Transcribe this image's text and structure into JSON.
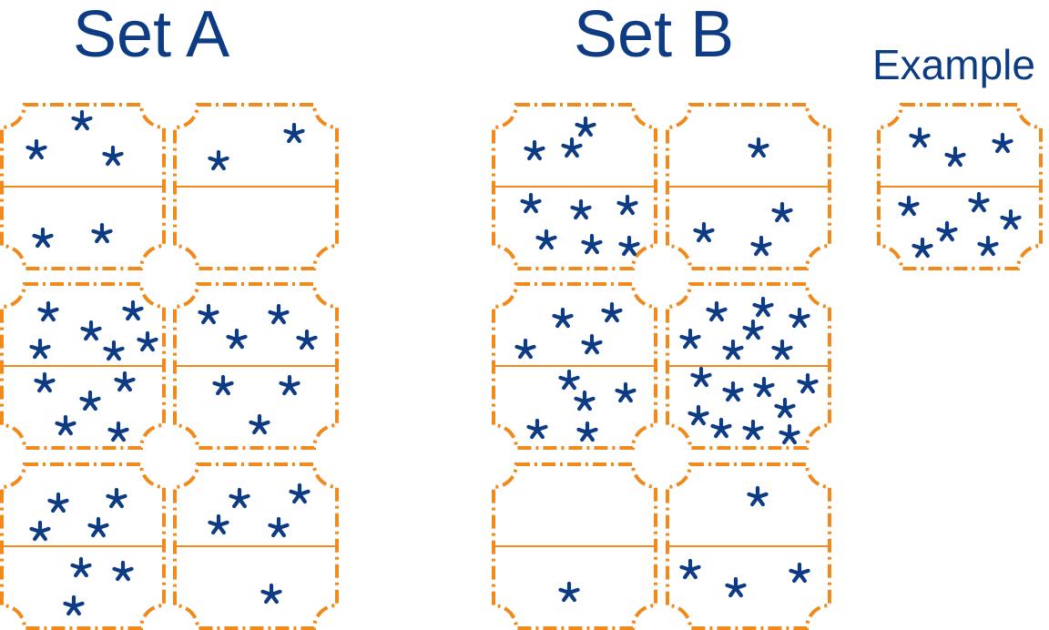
{
  "titles": {
    "set_a": "Set A",
    "set_b": "Set B",
    "example": "Example"
  },
  "colors": {
    "frame": "#f08a1c",
    "star": "#0d3b84",
    "text": "#0d3b84"
  },
  "icons": {
    "star": "asterisk-icon"
  },
  "panels": [
    {
      "group": "set-a",
      "row": 1,
      "col": 1,
      "top_stars": 3,
      "bottom_stars": 2
    },
    {
      "group": "set-a",
      "row": 1,
      "col": 2,
      "top_stars": 2,
      "bottom_stars": 0
    },
    {
      "group": "set-a",
      "row": 2,
      "col": 1,
      "top_stars": 6,
      "bottom_stars": 5
    },
    {
      "group": "set-a",
      "row": 2,
      "col": 2,
      "top_stars": 4,
      "bottom_stars": 3
    },
    {
      "group": "set-a",
      "row": 3,
      "col": 1,
      "top_stars": 4,
      "bottom_stars": 3
    },
    {
      "group": "set-a",
      "row": 3,
      "col": 2,
      "top_stars": 4,
      "bottom_stars": 1
    },
    {
      "group": "set-b",
      "row": 1,
      "col": 1,
      "top_stars": 3,
      "bottom_stars": 6
    },
    {
      "group": "set-b",
      "row": 1,
      "col": 2,
      "top_stars": 1,
      "bottom_stars": 3
    },
    {
      "group": "set-b",
      "row": 2,
      "col": 1,
      "top_stars": 4,
      "bottom_stars": 5
    },
    {
      "group": "set-b",
      "row": 2,
      "col": 2,
      "top_stars": 7,
      "bottom_stars": 9
    },
    {
      "group": "set-b",
      "row": 3,
      "col": 1,
      "top_stars": 0,
      "bottom_stars": 1
    },
    {
      "group": "set-b",
      "row": 3,
      "col": 2,
      "top_stars": 1,
      "bottom_stars": 3
    },
    {
      "group": "example",
      "row": 1,
      "col": 1,
      "top_stars": 3,
      "bottom_stars": 6
    }
  ]
}
